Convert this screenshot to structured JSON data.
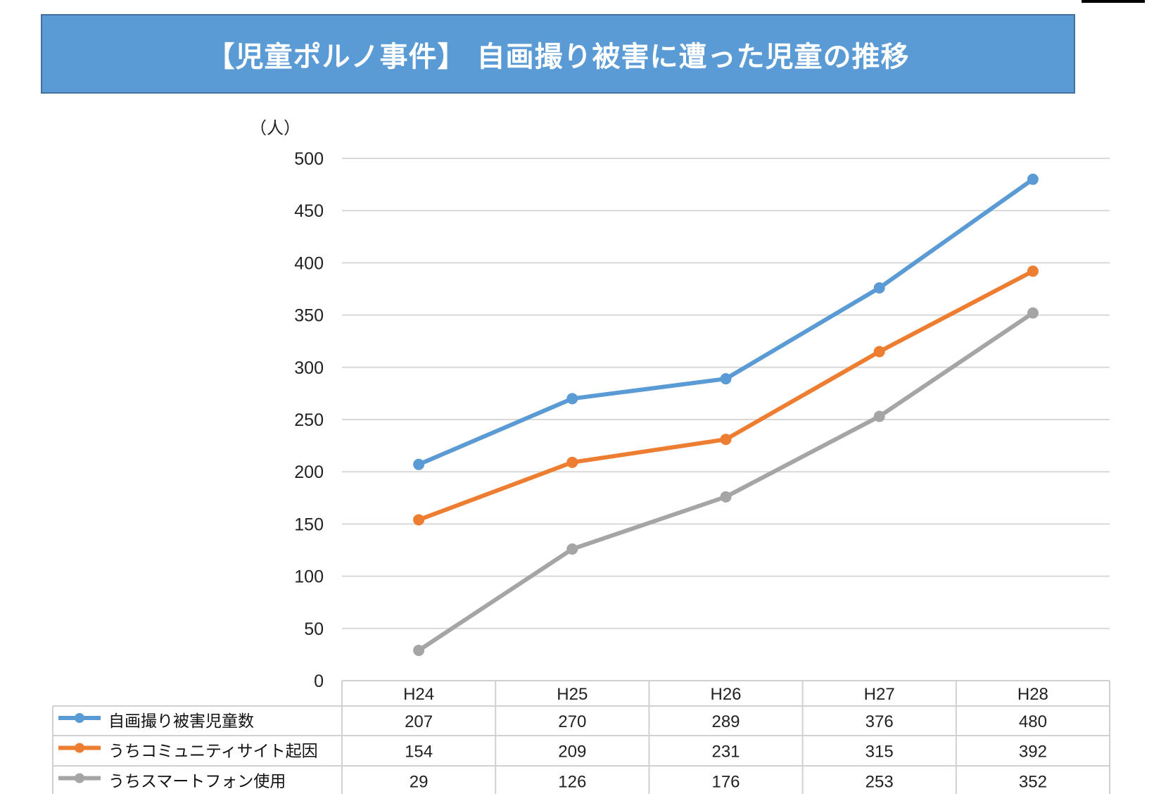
{
  "chart_data": {
    "type": "line",
    "title": "【児童ポルノ事件】 自画撮り被害に遭った児童の推移",
    "ylabel": "（人）",
    "xlabel": "",
    "ylim": [
      0,
      500
    ],
    "yticks": [
      0,
      50,
      100,
      150,
      200,
      250,
      300,
      350,
      400,
      450,
      500
    ],
    "categories": [
      "H24",
      "H25",
      "H26",
      "H27",
      "H28"
    ],
    "series": [
      {
        "name": "自画撮り被害児童数",
        "color": "#5b9bd5",
        "values": [
          207,
          270,
          289,
          376,
          480
        ]
      },
      {
        "name": "うちコミュニティサイト起因",
        "color": "#ed7d31",
        "values": [
          154,
          209,
          231,
          315,
          392
        ]
      },
      {
        "name": "うちスマートフォン使用",
        "color": "#a5a5a5",
        "values": [
          29,
          126,
          176,
          253,
          352
        ]
      }
    ],
    "grid": true,
    "legend": "data-table-below"
  }
}
